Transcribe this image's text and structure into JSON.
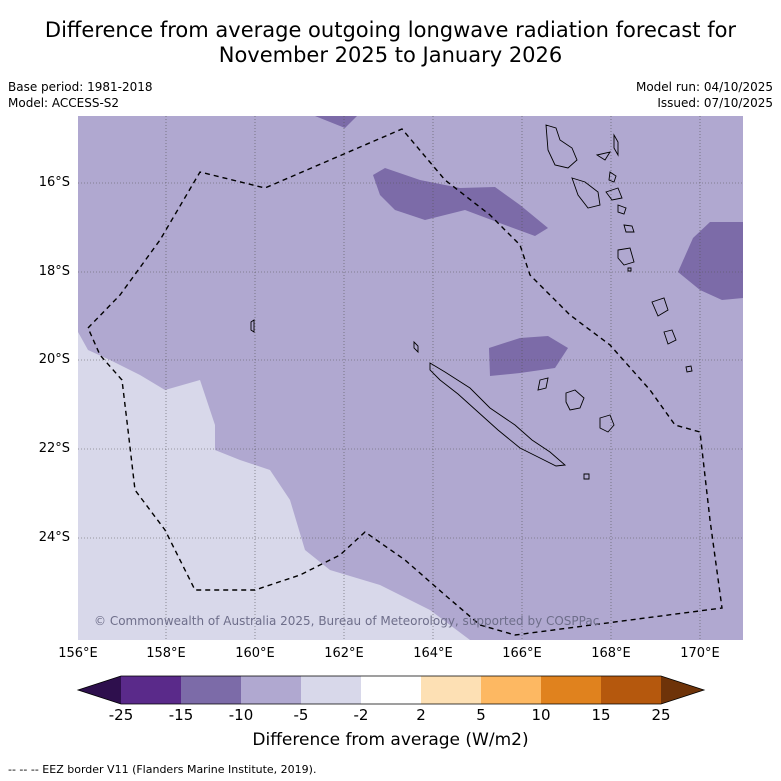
{
  "title": {
    "line1": "Difference from average outgoing longwave radiation forecast for",
    "line2": "November 2025 to January 2026"
  },
  "meta_left": {
    "base_period": "Base period: 1981-2018",
    "model": "Model: ACCESS-S2"
  },
  "meta_right": {
    "model_run": "Model run: 04/10/2025",
    "issued": "Issued: 07/10/2025"
  },
  "map": {
    "lat_labels": [
      "16°S",
      "18°S",
      "20°S",
      "22°S",
      "24°S"
    ],
    "lon_labels": [
      "156°E",
      "158°E",
      "160°E",
      "162°E",
      "164°E",
      "166°E",
      "168°E",
      "170°E"
    ],
    "credit": "© Commonwealth of Australia 2025, Bureau of Meteorology, supported by COSPPac"
  },
  "colorbar": {
    "ticks": [
      "-25",
      "-15",
      "-10",
      "-5",
      "-2",
      "2",
      "5",
      "10",
      "15",
      "25"
    ],
    "colors": {
      "under": "#2e0f4d",
      "b1": "#5a2a8a",
      "b2": "#7c6ba8",
      "b3": "#b0a8d0",
      "b4": "#d8d8ea",
      "b5": "#ffffff",
      "b6": "#fde0b4",
      "b7": "#fdb862",
      "b8": "#e0821e",
      "b9": "#b5580d",
      "over": "#6e3309"
    },
    "label": "Difference from average (W/m2)"
  },
  "footer": "--  --  -- EEZ border V11 (Flanders Marine Institute, 2019)."
}
